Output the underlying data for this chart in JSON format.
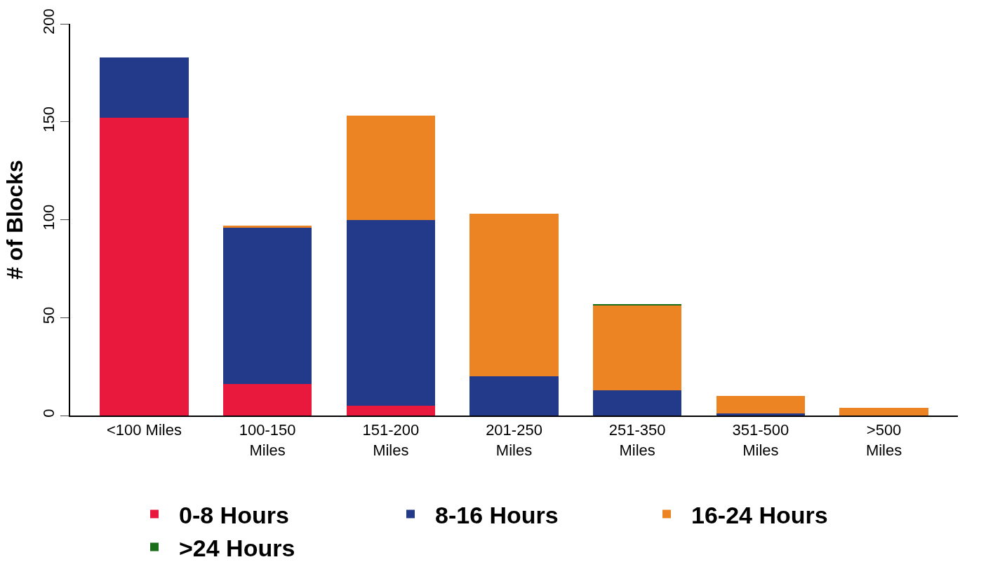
{
  "chart_data": {
    "type": "bar",
    "stacked": true,
    "ylabel": "# of Blocks",
    "categories": [
      "<100 Miles",
      "100-150\nMiles",
      "151-200\nMiles",
      "201-250\nMiles",
      "251-350\nMiles",
      "351-500\nMiles",
      ">500\nMiles"
    ],
    "series": [
      {
        "name": "0-8 Hours",
        "color": "#e8193c",
        "values": [
          152,
          16,
          5,
          0,
          0,
          0,
          0
        ]
      },
      {
        "name": "8-16 Hours",
        "color": "#233a8a",
        "values": [
          31,
          80,
          95,
          20,
          13,
          1,
          0
        ]
      },
      {
        "name": "16-24 Hours",
        "color": "#ec8424",
        "values": [
          0,
          1,
          53,
          83,
          43,
          9,
          4
        ]
      },
      {
        "name": ">24 Hours",
        "color": "#1a6e1a",
        "values": [
          0,
          0,
          0,
          0,
          1,
          0,
          0
        ]
      }
    ],
    "ylim": [
      0,
      200
    ],
    "yticks": [
      0,
      50,
      100,
      150,
      200
    ],
    "legend": "bottom"
  }
}
